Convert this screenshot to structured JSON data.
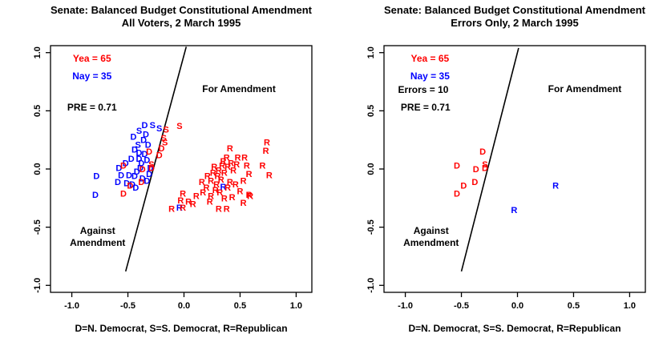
{
  "page": {
    "background": "#ffffff"
  },
  "colors": {
    "yea": "#ff0000",
    "nay": "#0000ff",
    "ink": "#000000"
  },
  "chart_data": [
    {
      "type": "scatter",
      "title_line1": "Senate: Balanced Budget Constitutional Amendment",
      "title_line2": "All Voters, 2 March 1995",
      "xlabel": "D=N. Democrat, S=S. Democrat, R=Republican",
      "xlim": [
        -1.19,
        1.14
      ],
      "ylim": [
        -1.06,
        1.06
      ],
      "xticks": [
        "-1.0",
        "-0.5",
        "0.0",
        "0.5",
        "1.0"
      ],
      "yticks": [
        "-1.0",
        "-0.5",
        "0.0",
        "0.5",
        "1.0"
      ],
      "xtick_values": [
        -1.0,
        -0.5,
        0.0,
        0.5,
        1.0
      ],
      "ytick_values": [
        -1.0,
        -0.5,
        0.0,
        0.5,
        1.0
      ],
      "grid": false,
      "stats": {
        "yea": 65,
        "nay": 35,
        "pre": 0.71
      },
      "legend": [
        {
          "text": "Yea =  65",
          "color_key": "yea",
          "x": -0.82,
          "y": 0.95
        },
        {
          "text": "Nay =  35",
          "color_key": "nay",
          "x": -0.82,
          "y": 0.8
        },
        {
          "text": "PRE =  0.71",
          "color_key": "ink",
          "x": -0.82,
          "y": 0.53
        }
      ],
      "annotations": [
        {
          "lines": [
            "For Amendment"
          ],
          "x": 0.49,
          "y": 0.69
        },
        {
          "lines": [
            "Against",
            "Amendment"
          ],
          "x": -0.77,
          "y": -0.58
        }
      ],
      "separator_line": {
        "x1": 0.02,
        "y1": 1.05,
        "x2": -0.52,
        "y2": -0.88
      },
      "points": [
        [
          "S",
          "nay",
          -0.4,
          0.33
        ],
        [
          "S",
          "nay",
          -0.28,
          0.38
        ],
        [
          "S",
          "nay",
          -0.22,
          0.35
        ],
        [
          "S",
          "nay",
          -0.41,
          0.21
        ],
        [
          "D",
          "nay",
          -0.35,
          0.38
        ],
        [
          "D",
          "nay",
          -0.34,
          0.3
        ],
        [
          "D",
          "nay",
          -0.32,
          0.21
        ],
        [
          "D",
          "nay",
          -0.4,
          0.14
        ],
        [
          "D",
          "nay",
          -0.47,
          0.09
        ],
        [
          "D",
          "nay",
          -0.4,
          0.09
        ],
        [
          "D",
          "nay",
          -0.33,
          0.08
        ],
        [
          "D",
          "nay",
          -0.58,
          0.01
        ],
        [
          "D",
          "nay",
          -0.39,
          0.01
        ],
        [
          "D",
          "nay",
          -0.31,
          -0.04
        ],
        [
          "D",
          "nay",
          -0.49,
          -0.05
        ],
        [
          "D",
          "nay",
          -0.44,
          -0.06
        ],
        [
          "D",
          "nay",
          -0.59,
          -0.11
        ],
        [
          "D",
          "nay",
          -0.51,
          -0.12
        ],
        [
          "D",
          "nay",
          -0.46,
          -0.13
        ],
        [
          "D",
          "nay",
          -0.78,
          -0.06
        ],
        [
          "D",
          "nay",
          -0.79,
          -0.22
        ],
        [
          "D",
          "nay",
          -0.56,
          -0.05
        ],
        [
          "D",
          "nay",
          -0.36,
          0.25
        ],
        [
          "D",
          "nay",
          -0.44,
          0.17
        ],
        [
          "D",
          "nay",
          -0.37,
          -0.08
        ],
        [
          "D",
          "nay",
          -0.52,
          0.05
        ],
        [
          "D",
          "nay",
          -0.42,
          -0.02
        ],
        [
          "D",
          "nay",
          -0.35,
          0.13
        ],
        [
          "D",
          "nay",
          -0.45,
          0.28
        ],
        [
          "D",
          "nay",
          -0.3,
          0.01
        ],
        [
          "D",
          "nay",
          -0.38,
          0.05
        ],
        [
          "D",
          "nay",
          -0.43,
          -0.16
        ],
        [
          "D",
          "nay",
          -0.33,
          -0.1
        ],
        [
          "R",
          "nay",
          0.35,
          -0.15
        ],
        [
          "R",
          "nay",
          -0.04,
          -0.33
        ],
        [
          "S",
          "yea",
          -0.16,
          0.34
        ],
        [
          "S",
          "yea",
          -0.04,
          0.37
        ],
        [
          "S",
          "yea",
          -0.18,
          0.27
        ],
        [
          "S",
          "yea",
          -0.17,
          0.23
        ],
        [
          "S",
          "yea",
          -0.29,
          0.04
        ],
        [
          "D",
          "yea",
          -0.31,
          0.15
        ],
        [
          "D",
          "yea",
          -0.22,
          0.12
        ],
        [
          "D",
          "yea",
          -0.54,
          0.03
        ],
        [
          "D",
          "yea",
          -0.37,
          0.0
        ],
        [
          "D",
          "yea",
          -0.29,
          0.01
        ],
        [
          "D",
          "yea",
          -0.38,
          -0.11
        ],
        [
          "D",
          "yea",
          -0.48,
          -0.14
        ],
        [
          "D",
          "yea",
          -0.54,
          -0.21
        ],
        [
          "D",
          "yea",
          -0.2,
          0.18
        ],
        [
          "R",
          "yea",
          0.41,
          0.18
        ],
        [
          "R",
          "yea",
          0.74,
          0.23
        ],
        [
          "R",
          "yea",
          0.73,
          0.16
        ],
        [
          "R",
          "yea",
          0.38,
          0.1
        ],
        [
          "R",
          "yea",
          0.48,
          0.1
        ],
        [
          "R",
          "yea",
          0.54,
          0.1
        ],
        [
          "R",
          "yea",
          0.42,
          0.05
        ],
        [
          "R",
          "yea",
          0.34,
          0.03
        ],
        [
          "R",
          "yea",
          0.39,
          0.02
        ],
        [
          "R",
          "yea",
          0.56,
          0.03
        ],
        [
          "R",
          "yea",
          0.7,
          0.03
        ],
        [
          "R",
          "yea",
          0.31,
          -0.01
        ],
        [
          "R",
          "yea",
          0.26,
          -0.03
        ],
        [
          "R",
          "yea",
          0.36,
          -0.03
        ],
        [
          "R",
          "yea",
          0.58,
          -0.04
        ],
        [
          "R",
          "yea",
          0.76,
          -0.05
        ],
        [
          "R",
          "yea",
          0.16,
          -0.11
        ],
        [
          "R",
          "yea",
          0.24,
          -0.1
        ],
        [
          "R",
          "yea",
          0.33,
          -0.09
        ],
        [
          "R",
          "yea",
          0.41,
          -0.11
        ],
        [
          "R",
          "yea",
          0.53,
          -0.1
        ],
        [
          "R",
          "yea",
          0.2,
          -0.16
        ],
        [
          "R",
          "yea",
          0.28,
          -0.18
        ],
        [
          "R",
          "yea",
          0.39,
          -0.16
        ],
        [
          "R",
          "yea",
          0.11,
          -0.23
        ],
        [
          "R",
          "yea",
          0.24,
          -0.23
        ],
        [
          "R",
          "yea",
          0.36,
          -0.25
        ],
        [
          "R",
          "yea",
          0.59,
          -0.23
        ],
        [
          "R",
          "yea",
          0.53,
          -0.29
        ],
        [
          "R",
          "yea",
          0.31,
          -0.34
        ],
        [
          "R",
          "yea",
          0.38,
          -0.34
        ],
        [
          "R",
          "yea",
          -0.01,
          -0.21
        ],
        [
          "R",
          "yea",
          -0.11,
          -0.34
        ],
        [
          "R",
          "yea",
          -0.01,
          -0.33
        ],
        [
          "R",
          "yea",
          -0.03,
          -0.27
        ],
        [
          "R",
          "yea",
          0.04,
          -0.28
        ],
        [
          "R",
          "yea",
          0.58,
          -0.22
        ],
        [
          "R",
          "yea",
          0.3,
          -0.06
        ],
        [
          "R",
          "yea",
          0.44,
          -0.01
        ],
        [
          "R",
          "yea",
          0.35,
          0.07
        ],
        [
          "R",
          "yea",
          0.46,
          -0.13
        ],
        [
          "R",
          "yea",
          0.29,
          -0.13
        ],
        [
          "R",
          "yea",
          0.21,
          -0.06
        ],
        [
          "R",
          "yea",
          0.47,
          0.04
        ],
        [
          "R",
          "yea",
          0.27,
          0.02
        ],
        [
          "R",
          "yea",
          0.5,
          -0.19
        ],
        [
          "R",
          "yea",
          0.17,
          -0.2
        ],
        [
          "R",
          "yea",
          0.32,
          -0.2
        ],
        [
          "R",
          "yea",
          0.43,
          -0.24
        ],
        [
          "R",
          "yea",
          0.23,
          -0.28
        ],
        [
          "R",
          "yea",
          0.08,
          -0.3
        ]
      ]
    },
    {
      "type": "scatter",
      "title_line1": "Senate: Balanced Budget Constitutional Amendment",
      "title_line2": "Errors Only, 2 March 1995",
      "xlabel": "D=N. Democrat, S=S. Democrat, R=Republican",
      "xlim": [
        -1.19,
        1.14
      ],
      "ylim": [
        -1.06,
        1.06
      ],
      "xticks": [
        "-1.0",
        "-0.5",
        "0.0",
        "0.5",
        "1.0"
      ],
      "yticks": [
        "-1.0",
        "-0.5",
        "0.0",
        "0.5",
        "1.0"
      ],
      "xtick_values": [
        -1.0,
        -0.5,
        0.0,
        0.5,
        1.0
      ],
      "ytick_values": [
        -1.0,
        -0.5,
        0.0,
        0.5,
        1.0
      ],
      "grid": false,
      "stats": {
        "yea": 65,
        "nay": 35,
        "errors": 10,
        "pre": 0.71
      },
      "legend": [
        {
          "text": "Yea =  65",
          "color_key": "yea",
          "x": -0.78,
          "y": 0.95
        },
        {
          "text": "Nay =  35",
          "color_key": "nay",
          "x": -0.78,
          "y": 0.8
        },
        {
          "text": "Errors =  10",
          "color_key": "ink",
          "x": -0.84,
          "y": 0.68
        },
        {
          "text": "PRE =  0.71",
          "color_key": "ink",
          "x": -0.82,
          "y": 0.53
        }
      ],
      "annotations": [
        {
          "lines": [
            "For Amendment"
          ],
          "x": 0.6,
          "y": 0.69
        },
        {
          "lines": [
            "Against",
            "Amendment"
          ],
          "x": -0.77,
          "y": -0.58
        }
      ],
      "separator_line": {
        "x1": 0.01,
        "y1": 1.04,
        "x2": -0.5,
        "y2": -0.88
      },
      "points": [
        [
          "D",
          "yea",
          -0.31,
          0.15
        ],
        [
          "D",
          "yea",
          -0.54,
          0.03
        ],
        [
          "S",
          "yea",
          -0.29,
          0.04
        ],
        [
          "D",
          "yea",
          -0.29,
          0.01
        ],
        [
          "D",
          "yea",
          -0.37,
          0.0
        ],
        [
          "D",
          "yea",
          -0.38,
          -0.11
        ],
        [
          "D",
          "yea",
          -0.48,
          -0.14
        ],
        [
          "D",
          "yea",
          -0.54,
          -0.21
        ],
        [
          "R",
          "nay",
          0.34,
          -0.14
        ],
        [
          "R",
          "nay",
          -0.03,
          -0.35
        ]
      ]
    }
  ]
}
